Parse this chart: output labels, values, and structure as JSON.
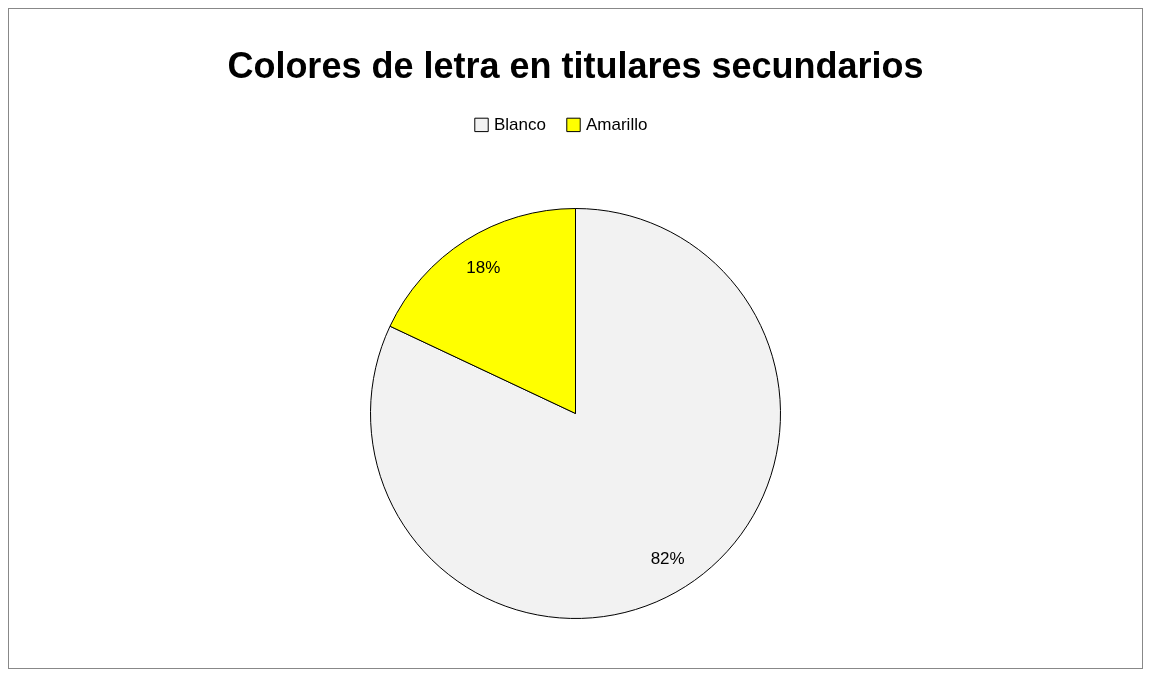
{
  "chart_data": {
    "type": "pie",
    "title": "Colores de letra en titulares secundarios",
    "categories": [
      "Blanco",
      "Amarillo"
    ],
    "values": [
      82,
      18
    ],
    "colors": [
      "#f2f2f2",
      "#ffff00"
    ],
    "value_labels": [
      "82%",
      "18%"
    ],
    "legend": "top"
  }
}
